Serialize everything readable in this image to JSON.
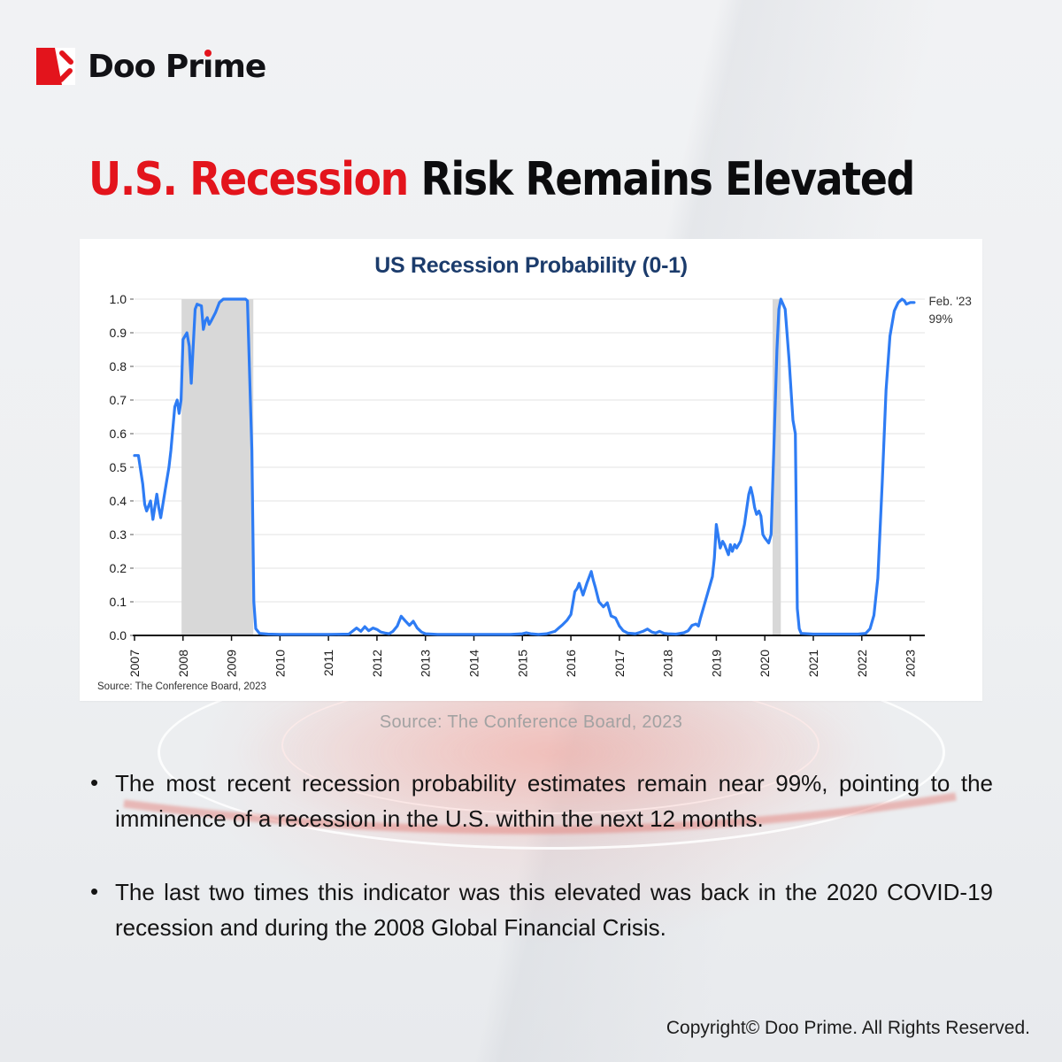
{
  "colors": {
    "accent_red": "#e3141c",
    "headline_black": "#0c0c0e",
    "chart_title_navy": "#1c3c6c",
    "line_blue": "#2e7cf4",
    "band_gray": "#d8d8d8",
    "grid_gray": "#e3e3e3",
    "axis_black": "#111111",
    "caption_gray": "#a2a2a2"
  },
  "logo": {
    "name": "Doo Prime",
    "prefix": "Doo Pr",
    "dotless_i": "ı",
    "suffix": "me"
  },
  "header": {
    "title_highlight": "U.S. Recession",
    "title_rest": " Risk Remains Elevated"
  },
  "chart_caption": "Source: The Conference Board, 2023",
  "bullets": [
    {
      "marker": "•",
      "text": "The most recent recession probability estimates remain near 99%, pointing to the imminence of a recession in the U.S. within the next 12 months."
    },
    {
      "marker": "•",
      "text": "The last two times this indicator was this elevated was back in the 2020 COVID-19 recession and during the 2008 Global Financial Crisis."
    }
  ],
  "footer": {
    "copyright": "Copyright© Doo Prime. All Rights Reserved."
  },
  "chart_data": {
    "type": "line",
    "title": "US Recession Probability (0-1)",
    "source_note": "Source: The Conference Board, 2023",
    "xlabel": "",
    "ylabel": "",
    "xlim": [
      2007,
      2023.3
    ],
    "ylim": [
      0,
      1
    ],
    "x_ticks": [
      2007,
      2008,
      2009,
      2010,
      2011,
      2012,
      2013,
      2014,
      2015,
      2016,
      2017,
      2018,
      2019,
      2020,
      2021,
      2022,
      2023
    ],
    "y_ticks": [
      0.0,
      0.1,
      0.2,
      0.3,
      0.4,
      0.5,
      0.6,
      0.7,
      0.8,
      0.9,
      1.0
    ],
    "grid": true,
    "legend": "none",
    "line_color": "#2e7cf4",
    "band_color": "#d8d8d8",
    "grid_color": "#e3e3e3",
    "axis_color": "#111111",
    "annotation": {
      "line1": "Feb. '23",
      "line2": "99%",
      "x": 2023.2,
      "y": 0.99
    },
    "recession_bands": [
      {
        "from": 2007.97,
        "to": 2009.45
      },
      {
        "from": 2020.16,
        "to": 2020.33
      }
    ],
    "series": [
      {
        "name": "US Recession Probability",
        "points": [
          [
            2007.0,
            0.535
          ],
          [
            2007.08,
            0.535
          ],
          [
            2007.17,
            0.45
          ],
          [
            2007.21,
            0.39
          ],
          [
            2007.25,
            0.37
          ],
          [
            2007.33,
            0.4
          ],
          [
            2007.38,
            0.345
          ],
          [
            2007.46,
            0.42
          ],
          [
            2007.5,
            0.38
          ],
          [
            2007.54,
            0.35
          ],
          [
            2007.63,
            0.43
          ],
          [
            2007.71,
            0.5
          ],
          [
            2007.75,
            0.55
          ],
          [
            2007.83,
            0.68
          ],
          [
            2007.88,
            0.7
          ],
          [
            2007.92,
            0.66
          ],
          [
            2007.96,
            0.7
          ],
          [
            2008.0,
            0.88
          ],
          [
            2008.08,
            0.9
          ],
          [
            2008.13,
            0.86
          ],
          [
            2008.17,
            0.75
          ],
          [
            2008.25,
            0.97
          ],
          [
            2008.29,
            0.985
          ],
          [
            2008.38,
            0.98
          ],
          [
            2008.42,
            0.91
          ],
          [
            2008.46,
            0.935
          ],
          [
            2008.5,
            0.945
          ],
          [
            2008.54,
            0.925
          ],
          [
            2008.58,
            0.935
          ],
          [
            2008.67,
            0.96
          ],
          [
            2008.75,
            0.99
          ],
          [
            2008.83,
            1.0
          ],
          [
            2009.0,
            1.0
          ],
          [
            2009.17,
            1.0
          ],
          [
            2009.29,
            1.0
          ],
          [
            2009.33,
            0.995
          ],
          [
            2009.42,
            0.55
          ],
          [
            2009.46,
            0.1
          ],
          [
            2009.5,
            0.02
          ],
          [
            2009.58,
            0.006
          ],
          [
            2009.75,
            0.004
          ],
          [
            2010.0,
            0.003
          ],
          [
            2010.5,
            0.003
          ],
          [
            2011.0,
            0.003
          ],
          [
            2011.42,
            0.004
          ],
          [
            2011.58,
            0.022
          ],
          [
            2011.67,
            0.012
          ],
          [
            2011.75,
            0.026
          ],
          [
            2011.83,
            0.014
          ],
          [
            2011.92,
            0.022
          ],
          [
            2012.0,
            0.018
          ],
          [
            2012.08,
            0.01
          ],
          [
            2012.17,
            0.007
          ],
          [
            2012.25,
            0.005
          ],
          [
            2012.33,
            0.012
          ],
          [
            2012.42,
            0.028
          ],
          [
            2012.5,
            0.057
          ],
          [
            2012.58,
            0.044
          ],
          [
            2012.67,
            0.03
          ],
          [
            2012.75,
            0.042
          ],
          [
            2012.83,
            0.022
          ],
          [
            2012.92,
            0.01
          ],
          [
            2013.0,
            0.005
          ],
          [
            2013.25,
            0.003
          ],
          [
            2013.75,
            0.003
          ],
          [
            2014.25,
            0.003
          ],
          [
            2014.75,
            0.003
          ],
          [
            2015.0,
            0.005
          ],
          [
            2015.08,
            0.008
          ],
          [
            2015.17,
            0.005
          ],
          [
            2015.33,
            0.003
          ],
          [
            2015.5,
            0.005
          ],
          [
            2015.67,
            0.012
          ],
          [
            2015.75,
            0.022
          ],
          [
            2015.83,
            0.032
          ],
          [
            2015.92,
            0.045
          ],
          [
            2016.0,
            0.062
          ],
          [
            2016.08,
            0.13
          ],
          [
            2016.13,
            0.14
          ],
          [
            2016.17,
            0.155
          ],
          [
            2016.25,
            0.12
          ],
          [
            2016.33,
            0.155
          ],
          [
            2016.42,
            0.19
          ],
          [
            2016.46,
            0.165
          ],
          [
            2016.5,
            0.145
          ],
          [
            2016.58,
            0.1
          ],
          [
            2016.67,
            0.085
          ],
          [
            2016.75,
            0.097
          ],
          [
            2016.83,
            0.058
          ],
          [
            2016.92,
            0.052
          ],
          [
            2017.0,
            0.028
          ],
          [
            2017.08,
            0.014
          ],
          [
            2017.17,
            0.007
          ],
          [
            2017.33,
            0.005
          ],
          [
            2017.42,
            0.009
          ],
          [
            2017.5,
            0.013
          ],
          [
            2017.58,
            0.019
          ],
          [
            2017.67,
            0.01
          ],
          [
            2017.75,
            0.007
          ],
          [
            2017.83,
            0.012
          ],
          [
            2017.92,
            0.006
          ],
          [
            2018.0,
            0.005
          ],
          [
            2018.17,
            0.004
          ],
          [
            2018.33,
            0.008
          ],
          [
            2018.42,
            0.014
          ],
          [
            2018.5,
            0.03
          ],
          [
            2018.58,
            0.034
          ],
          [
            2018.63,
            0.028
          ],
          [
            2018.67,
            0.05
          ],
          [
            2018.75,
            0.09
          ],
          [
            2018.83,
            0.13
          ],
          [
            2018.92,
            0.175
          ],
          [
            2018.96,
            0.23
          ],
          [
            2019.0,
            0.33
          ],
          [
            2019.08,
            0.26
          ],
          [
            2019.13,
            0.28
          ],
          [
            2019.17,
            0.27
          ],
          [
            2019.25,
            0.24
          ],
          [
            2019.29,
            0.27
          ],
          [
            2019.33,
            0.25
          ],
          [
            2019.38,
            0.27
          ],
          [
            2019.42,
            0.26
          ],
          [
            2019.5,
            0.28
          ],
          [
            2019.58,
            0.33
          ],
          [
            2019.63,
            0.38
          ],
          [
            2019.67,
            0.42
          ],
          [
            2019.71,
            0.44
          ],
          [
            2019.75,
            0.415
          ],
          [
            2019.79,
            0.38
          ],
          [
            2019.83,
            0.36
          ],
          [
            2019.88,
            0.37
          ],
          [
            2019.92,
            0.355
          ],
          [
            2019.96,
            0.3
          ],
          [
            2020.0,
            0.29
          ],
          [
            2020.08,
            0.275
          ],
          [
            2020.13,
            0.3
          ],
          [
            2020.17,
            0.48
          ],
          [
            2020.25,
            0.85
          ],
          [
            2020.29,
            0.97
          ],
          [
            2020.33,
            1.0
          ],
          [
            2020.42,
            0.97
          ],
          [
            2020.5,
            0.82
          ],
          [
            2020.58,
            0.64
          ],
          [
            2020.63,
            0.6
          ],
          [
            2020.67,
            0.08
          ],
          [
            2020.71,
            0.02
          ],
          [
            2020.75,
            0.006
          ],
          [
            2021.0,
            0.004
          ],
          [
            2021.5,
            0.004
          ],
          [
            2021.92,
            0.004
          ],
          [
            2022.08,
            0.006
          ],
          [
            2022.17,
            0.02
          ],
          [
            2022.25,
            0.06
          ],
          [
            2022.33,
            0.17
          ],
          [
            2022.42,
            0.45
          ],
          [
            2022.5,
            0.73
          ],
          [
            2022.58,
            0.89
          ],
          [
            2022.67,
            0.965
          ],
          [
            2022.75,
            0.99
          ],
          [
            2022.83,
            1.0
          ],
          [
            2022.88,
            0.995
          ],
          [
            2022.92,
            0.985
          ],
          [
            2023.0,
            0.99
          ],
          [
            2023.08,
            0.99
          ]
        ]
      }
    ]
  }
}
